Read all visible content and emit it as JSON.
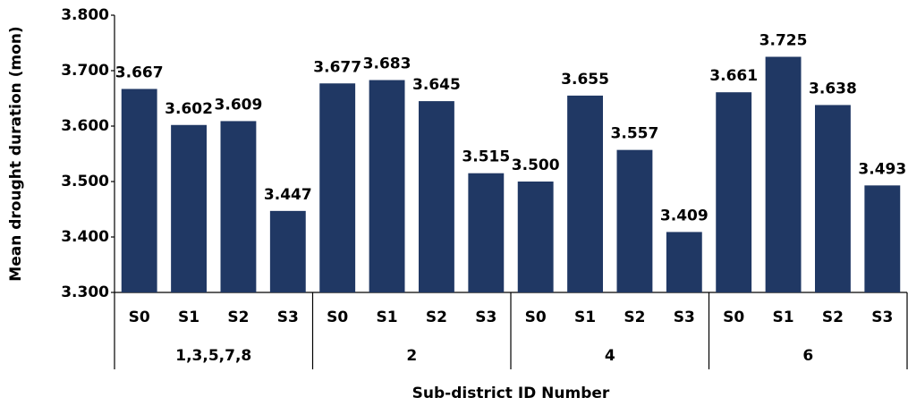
{
  "chart_data": {
    "type": "bar",
    "y_label": "Mean drought duration (mon)",
    "x_label": "Sub-district ID Number",
    "color": "#203864",
    "ylim": [
      3.3,
      3.8
    ],
    "yticks": [
      {
        "value": 3.3,
        "label": "3.300"
      },
      {
        "value": 3.4,
        "label": "3.400"
      },
      {
        "value": 3.5,
        "label": "3.500"
      },
      {
        "value": 3.6,
        "label": "3.600"
      },
      {
        "value": 3.7,
        "label": "3.700"
      },
      {
        "value": 3.8,
        "label": "3.800"
      }
    ],
    "groups": [
      {
        "name": "1,3,5,7,8",
        "categories": [
          "S0",
          "S1",
          "S2",
          "S3"
        ],
        "values": [
          3.667,
          3.602,
          3.609,
          3.447
        ],
        "value_labels": [
          "3.667",
          "3.602",
          "3.609",
          "3.447"
        ]
      },
      {
        "name": "2",
        "categories": [
          "S0",
          "S1",
          "S2",
          "S3"
        ],
        "values": [
          3.677,
          3.683,
          3.645,
          3.515
        ],
        "value_labels": [
          "3.677",
          "3.683",
          "3.645",
          "3.515"
        ]
      },
      {
        "name": "4",
        "categories": [
          "S0",
          "S1",
          "S2",
          "S3"
        ],
        "values": [
          3.5,
          3.655,
          3.557,
          3.409
        ],
        "value_labels": [
          "3.500",
          "3.655",
          "3.557",
          "3.409"
        ]
      },
      {
        "name": "6",
        "categories": [
          "S0",
          "S1",
          "S2",
          "S3"
        ],
        "values": [
          3.661,
          3.725,
          3.638,
          3.493
        ],
        "value_labels": [
          "3.661",
          "3.725",
          "3.638",
          "3.493"
        ]
      }
    ]
  }
}
